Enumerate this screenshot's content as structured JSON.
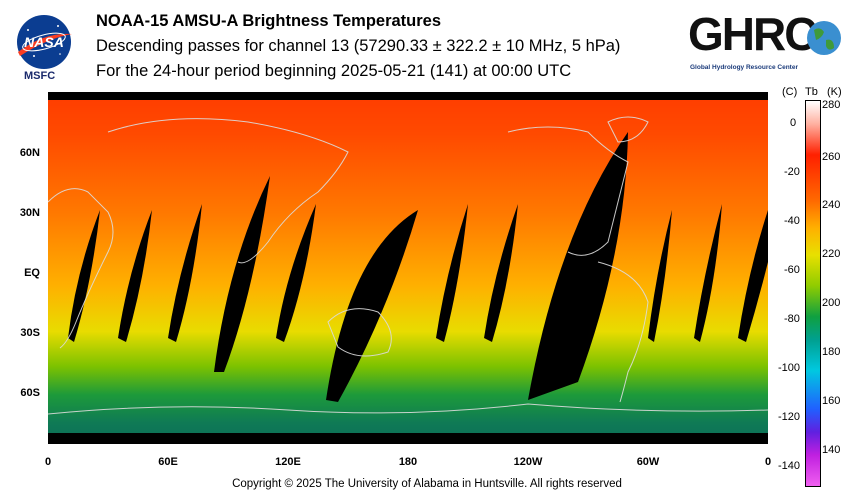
{
  "header": {
    "title": "NOAA-15 AMSU-A Brightness Temperatures",
    "subtitle_line1": "Descending passes for channel 13 (57290.33 ± 322.2 ± 10 MHz, 5 hPa)",
    "subtitle_line2": "For the 24-hour period beginning 2025-05-21 (141) at 00:00 UTC"
  },
  "logos": {
    "nasa_text": "NASA",
    "msfc_text": "MSFC",
    "ghrc_text": "GHRC",
    "ghrc_subtitle": "Global Hydrology Resource Center"
  },
  "map": {
    "y_labels": [
      "60N",
      "30N",
      "EQ",
      "30S",
      "60S"
    ],
    "x_labels": [
      "0",
      "60E",
      "120E",
      "180",
      "120W",
      "60W",
      "0"
    ]
  },
  "colorbar": {
    "header": {
      "c_unit": "(C)",
      "tb": "Tb",
      "k_unit": "(K)"
    },
    "celsius_ticks": [
      "0",
      "-20",
      "-40",
      "-60",
      "-80",
      "-100",
      "-120",
      "-140"
    ],
    "kelvin_ticks": [
      "280",
      "260",
      "240",
      "220",
      "200",
      "180",
      "160",
      "140"
    ]
  },
  "colors": {
    "warm": "#ff4a00",
    "mid": "#f0d800",
    "cool": "#10904a",
    "gap": "#000000"
  },
  "footer": {
    "copyright": "Copyright © 2025 The University of Alabama in Huntsville.  All rights reserved"
  }
}
